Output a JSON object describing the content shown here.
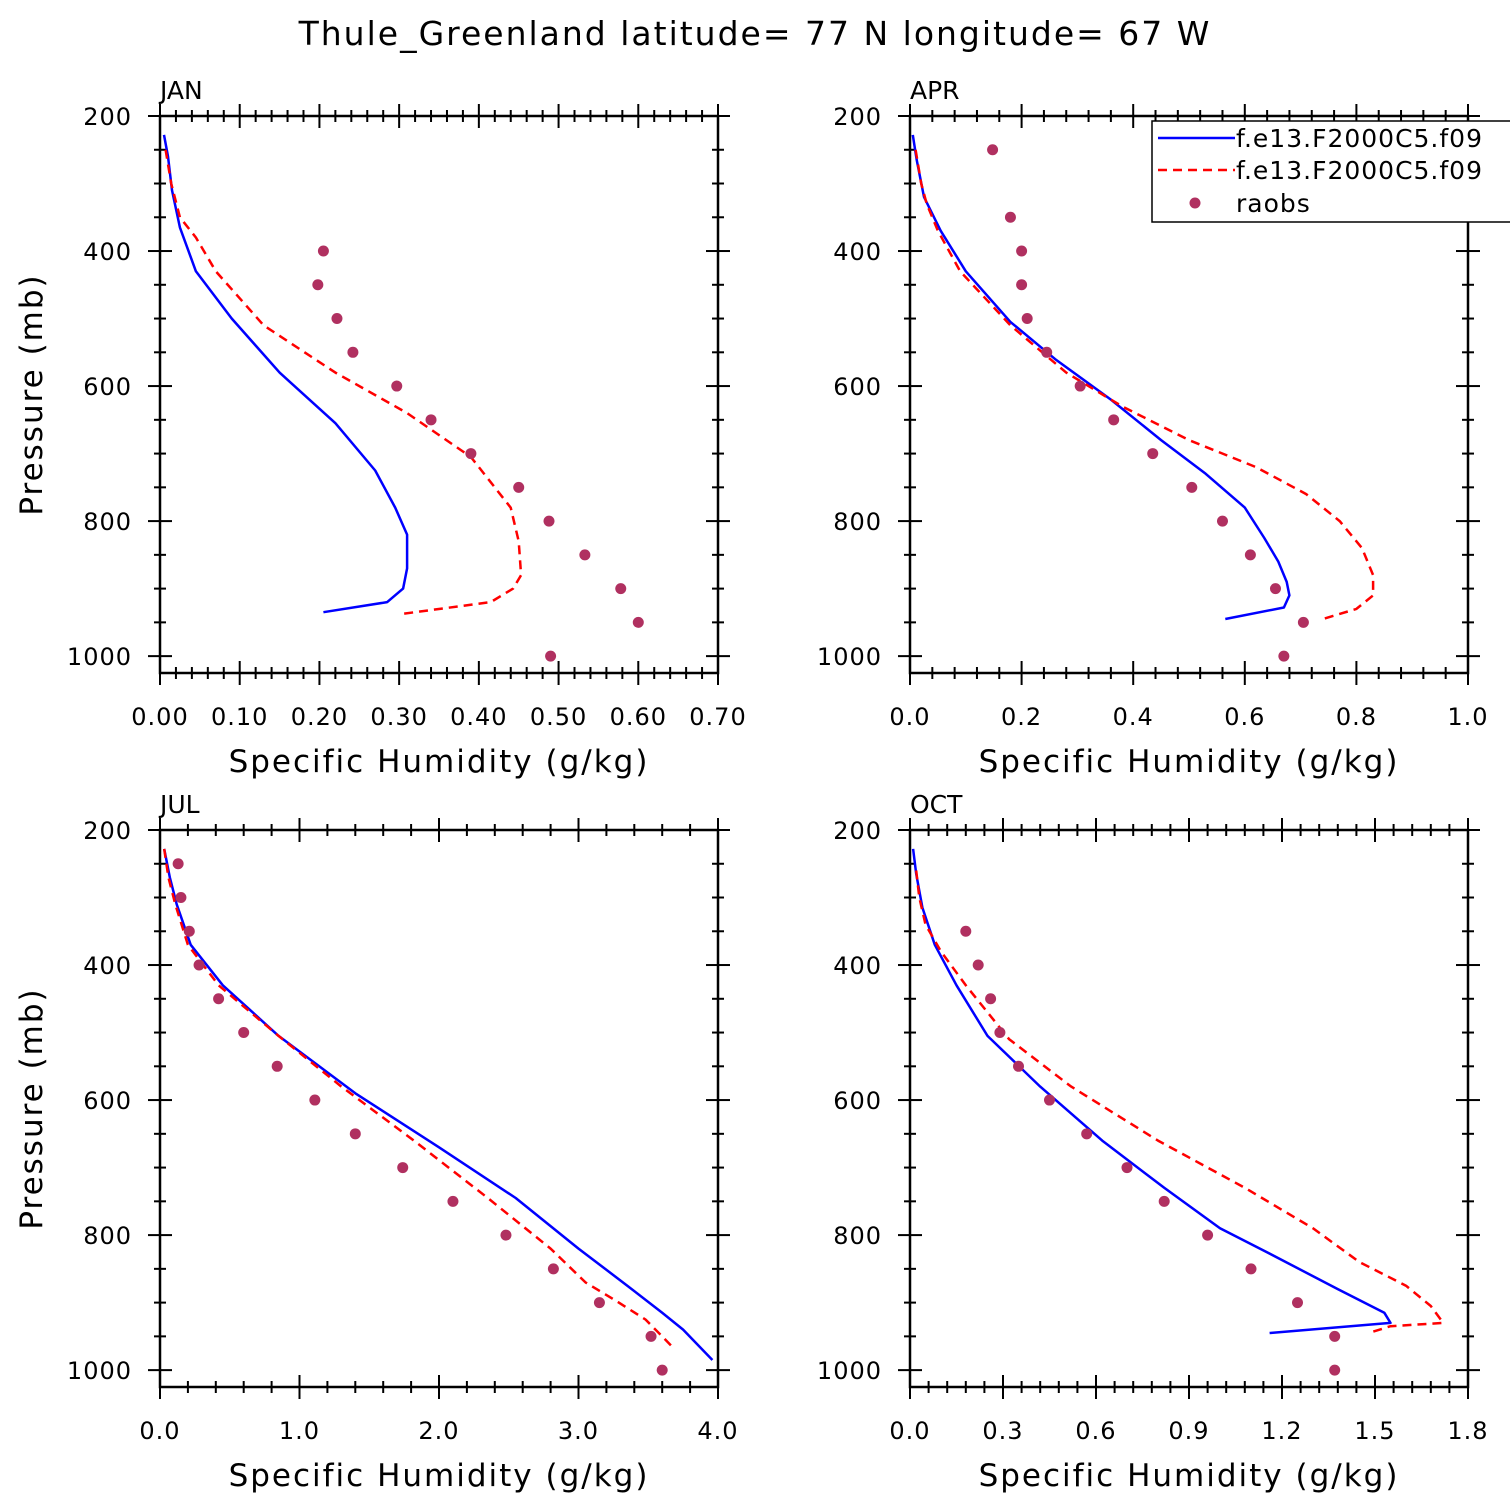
{
  "figure": {
    "title": "Thule_Greenland  latitude= 77 N longitude= 67 W"
  },
  "legend": {
    "entries": [
      {
        "label": "f.e13.F2000C5.f09",
        "style": "solid",
        "color": "#0000ff"
      },
      {
        "label": "f.e13.F2000C5.f09",
        "style": "dashed",
        "color": "#ff0000"
      },
      {
        "label": "raobs",
        "style": "marker",
        "color": "#b03060"
      }
    ]
  },
  "colors": {
    "model_solid": "#0000ff",
    "model_dashed": "#ff0000",
    "raobs": "#b03060"
  },
  "chart_data": [
    {
      "type": "line",
      "panel": "JAN",
      "xlabel": "Specific Humidity (g/kg)",
      "ylabel": "Pressure (mb)",
      "xlim": [
        0,
        0.7
      ],
      "ylim": [
        200,
        1025
      ],
      "y_inverted": true,
      "xticks": [
        "0.00",
        "0.10",
        "0.20",
        "0.30",
        "0.40",
        "0.50",
        "0.60",
        "0.70"
      ],
      "yticks": [
        "200",
        "400",
        "600",
        "800",
        "1000"
      ],
      "series": [
        {
          "name": "f.e13.F2000C5.f09",
          "style": "solid",
          "x": [
            0.005,
            0.01,
            0.015,
            0.025,
            0.045,
            0.09,
            0.15,
            0.22,
            0.27,
            0.295,
            0.31,
            0.31,
            0.305,
            0.285,
            0.205
          ],
          "y": [
            228,
            260,
            310,
            365,
            430,
            500,
            580,
            655,
            725,
            780,
            820,
            870,
            900,
            920,
            935
          ]
        },
        {
          "name": "f.e13.F2000C5.f09",
          "style": "dashed",
          "x": [
            0.007,
            0.014,
            0.025,
            0.045,
            0.07,
            0.13,
            0.22,
            0.31,
            0.39,
            0.44,
            0.45,
            0.453,
            0.443,
            0.415,
            0.3
          ],
          "y": [
            250,
            300,
            350,
            380,
            430,
            510,
            580,
            640,
            705,
            780,
            830,
            880,
            900,
            920,
            938
          ]
        },
        {
          "name": "raobs",
          "style": "marker",
          "x": [
            0.205,
            0.198,
            0.222,
            0.242,
            0.297,
            0.34,
            0.39,
            0.45,
            0.488,
            0.533,
            0.578,
            0.6,
            0.49
          ],
          "y": [
            400,
            450,
            500,
            550,
            600,
            650,
            700,
            750,
            800,
            850,
            900,
            950,
            1000
          ]
        }
      ]
    },
    {
      "type": "line",
      "panel": "APR",
      "xlabel": "Specific Humidity (g/kg)",
      "ylabel": "",
      "xlim": [
        0,
        1.0
      ],
      "ylim": [
        200,
        1025
      ],
      "y_inverted": true,
      "xticks": [
        "0.0",
        "0.2",
        "0.4",
        "0.6",
        "0.8",
        "1.0"
      ],
      "yticks": [
        "200",
        "400",
        "600",
        "800",
        "1000"
      ],
      "series": [
        {
          "name": "f.e13.F2000C5.f09",
          "style": "solid",
          "x": [
            0.005,
            0.012,
            0.025,
            0.055,
            0.1,
            0.18,
            0.26,
            0.36,
            0.45,
            0.53,
            0.6,
            0.635,
            0.66,
            0.675,
            0.68,
            0.67,
            0.565
          ],
          "y": [
            228,
            265,
            320,
            370,
            430,
            505,
            560,
            620,
            680,
            730,
            780,
            825,
            860,
            890,
            910,
            928,
            945
          ]
        },
        {
          "name": "f.e13.F2000C5.f09",
          "style": "dashed",
          "x": [
            0.01,
            0.02,
            0.03,
            0.05,
            0.09,
            0.18,
            0.28,
            0.38,
            0.5,
            0.62,
            0.71,
            0.77,
            0.81,
            0.83,
            0.83,
            0.8,
            0.74
          ],
          "y": [
            250,
            300,
            330,
            370,
            430,
            510,
            580,
            630,
            680,
            720,
            760,
            800,
            840,
            880,
            910,
            930,
            945
          ]
        },
        {
          "name": "raobs",
          "style": "marker",
          "x": [
            0.148,
            0.18,
            0.2,
            0.2,
            0.21,
            0.245,
            0.305,
            0.365,
            0.435,
            0.505,
            0.56,
            0.61,
            0.655,
            0.705,
            0.67
          ],
          "y": [
            250,
            350,
            400,
            450,
            500,
            550,
            600,
            650,
            700,
            750,
            800,
            850,
            900,
            950,
            1000
          ]
        }
      ]
    },
    {
      "type": "line",
      "panel": "JUL",
      "xlabel": "Specific Humidity (g/kg)",
      "ylabel": "Pressure (mb)",
      "xlim": [
        0,
        4.0
      ],
      "ylim": [
        200,
        1025
      ],
      "y_inverted": true,
      "xticks": [
        "0.0",
        "1.0",
        "2.0",
        "3.0",
        "4.0"
      ],
      "yticks": [
        "200",
        "400",
        "600",
        "800",
        "1000"
      ],
      "series": [
        {
          "name": "f.e13.F2000C5.f09",
          "style": "solid",
          "x": [
            0.03,
            0.07,
            0.12,
            0.22,
            0.45,
            0.85,
            1.4,
            2.0,
            2.55,
            3.0,
            3.35,
            3.6,
            3.75,
            3.88,
            3.96
          ],
          "y": [
            228,
            270,
            310,
            370,
            430,
            505,
            590,
            670,
            745,
            820,
            875,
            915,
            940,
            968,
            985
          ]
        },
        {
          "name": "f.e13.F2000C5.f09",
          "style": "dashed",
          "x": [
            0.03,
            0.06,
            0.11,
            0.2,
            0.42,
            0.85,
            1.3,
            1.82,
            2.35,
            2.8,
            3.05,
            3.25,
            3.48,
            3.6,
            3.67
          ],
          "y": [
            228,
            270,
            310,
            370,
            430,
            505,
            580,
            660,
            745,
            820,
            870,
            895,
            925,
            950,
            965
          ]
        },
        {
          "name": "raobs",
          "style": "marker",
          "x": [
            0.13,
            0.15,
            0.21,
            0.28,
            0.42,
            0.6,
            0.84,
            1.11,
            1.4,
            1.74,
            2.1,
            2.48,
            2.82,
            3.15,
            3.52,
            3.6
          ],
          "y": [
            250,
            300,
            350,
            400,
            450,
            500,
            550,
            600,
            650,
            700,
            750,
            800,
            850,
            900,
            950,
            1000
          ]
        }
      ]
    },
    {
      "type": "line",
      "panel": "OCT",
      "xlabel": "Specific Humidity (g/kg)",
      "ylabel": "",
      "xlim": [
        0,
        1.8
      ],
      "ylim": [
        200,
        1025
      ],
      "y_inverted": true,
      "xticks": [
        "0.0",
        "0.3",
        "0.6",
        "0.9",
        "1.2",
        "1.5",
        "1.8"
      ],
      "yticks": [
        "200",
        "400",
        "600",
        "800",
        "1000"
      ],
      "series": [
        {
          "name": "f.e13.F2000C5.f09",
          "style": "solid",
          "x": [
            0.01,
            0.02,
            0.04,
            0.08,
            0.15,
            0.25,
            0.42,
            0.62,
            0.82,
            1.0,
            1.15,
            1.38,
            1.53,
            1.55,
            1.16
          ],
          "y": [
            228,
            265,
            315,
            370,
            430,
            505,
            580,
            660,
            730,
            790,
            825,
            880,
            915,
            930,
            945
          ]
        },
        {
          "name": "f.e13.F2000C5.f09",
          "style": "dashed",
          "x": [
            0.02,
            0.03,
            0.05,
            0.1,
            0.18,
            0.32,
            0.52,
            0.8,
            1.08,
            1.3,
            1.45,
            1.6,
            1.68,
            1.72,
            1.55,
            1.48
          ],
          "y": [
            260,
            300,
            340,
            380,
            430,
            510,
            580,
            660,
            730,
            790,
            840,
            875,
            905,
            930,
            935,
            945
          ]
        },
        {
          "name": "raobs",
          "style": "marker",
          "x": [
            0.18,
            0.22,
            0.26,
            0.29,
            0.35,
            0.45,
            0.57,
            0.7,
            0.82,
            0.96,
            1.1,
            1.25,
            1.37,
            1.37
          ],
          "y": [
            350,
            400,
            450,
            500,
            550,
            600,
            650,
            700,
            750,
            800,
            850,
            900,
            950,
            1000
          ]
        }
      ]
    }
  ]
}
